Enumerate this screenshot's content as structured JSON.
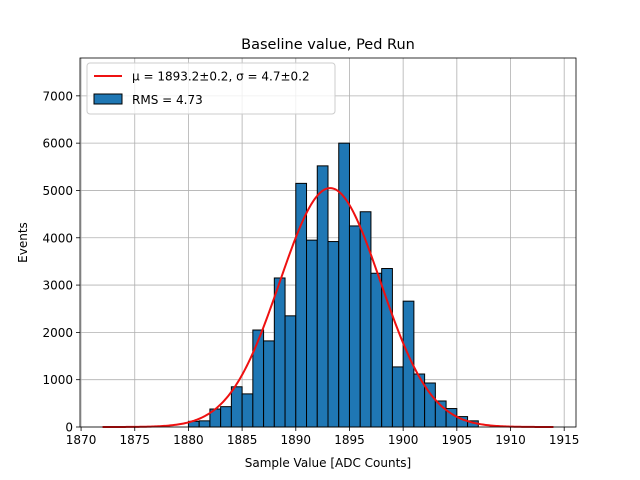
{
  "chart_data": {
    "type": "bar",
    "title": "Baseline value, Ped Run",
    "xlabel": "Sample Value [ADC Counts]",
    "ylabel": "Events",
    "xlim": [
      1869.9,
      1916.1
    ],
    "ylim": [
      0,
      7800
    ],
    "xticks": [
      1870,
      1875,
      1880,
      1885,
      1890,
      1895,
      1900,
      1905,
      1910,
      1915
    ],
    "yticks": [
      0,
      1000,
      2000,
      3000,
      4000,
      5000,
      6000,
      7000
    ],
    "grid": true,
    "legend_position": "top-left",
    "bin_width": 1,
    "bin_start": [
      1880,
      1881,
      1882,
      1883,
      1884,
      1885,
      1886,
      1887,
      1888,
      1889,
      1890,
      1891,
      1892,
      1893,
      1894,
      1895,
      1896,
      1897,
      1898,
      1899,
      1900,
      1901,
      1902,
      1903,
      1904,
      1905,
      1906
    ],
    "counts": [
      120,
      130,
      380,
      430,
      850,
      700,
      2050,
      1820,
      3150,
      2350,
      5150,
      3950,
      5520,
      3920,
      6000,
      4250,
      4550,
      3250,
      3350,
      1270,
      2660,
      1120,
      930,
      550,
      390,
      220,
      130
    ],
    "bar_color": "#1f77b4",
    "series": [
      {
        "name": "RMS = 4.73",
        "kind": "histogram"
      },
      {
        "name": "μ = 1893.2±0.2, σ = 4.7±0.2",
        "kind": "gaussian-fit",
        "color": "#ee1111",
        "mu": 1893.2,
        "sigma": 4.7,
        "amplitude": 5050,
        "x_range": [
          1872,
          1914
        ]
      }
    ]
  }
}
